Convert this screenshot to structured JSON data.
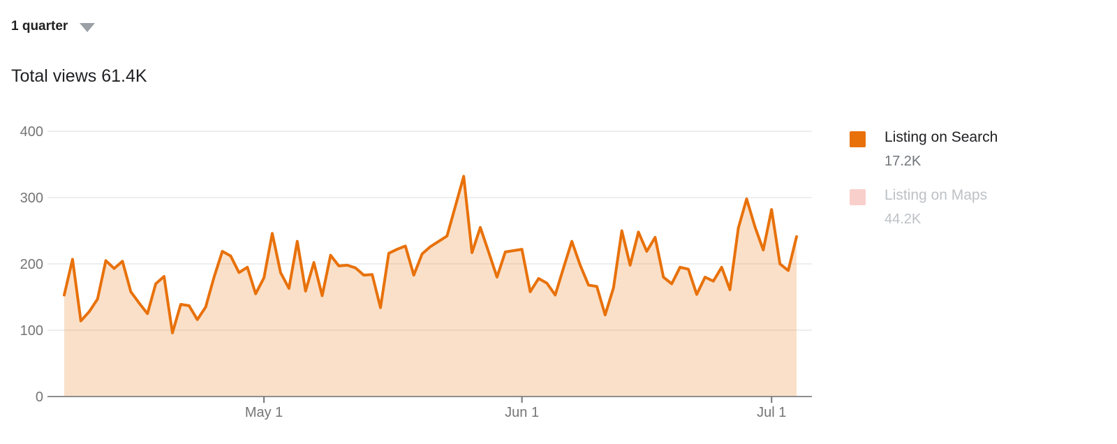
{
  "header": {
    "period_selector": {
      "label": "1 quarter"
    },
    "title": "Total views 61.4K"
  },
  "legend": [
    {
      "label": "Listing on Search",
      "value": "17.2K",
      "swatch": "#E8710A",
      "muted": false
    },
    {
      "label": "Listing on Maps",
      "value": "44.2K",
      "swatch": "#F9CFCB",
      "muted": true
    }
  ],
  "chart_data": {
    "type": "area",
    "title": "Total views 61.4K",
    "xlabel": "",
    "ylabel": "",
    "ylim": [
      0,
      400
    ],
    "y_ticks": [
      0,
      100,
      200,
      300,
      400
    ],
    "grid": "horizontal",
    "legend_position": "right",
    "x_ticks": [
      {
        "index": 24,
        "label": "May 1"
      },
      {
        "index": 55,
        "label": "Jun 1"
      },
      {
        "index": 85,
        "label": "Jul 1"
      }
    ],
    "series": [
      {
        "name": "Listing on Search",
        "total_label": "17.2K",
        "color": "#E8710A",
        "fill": "rgba(232,113,10,0.22)",
        "values": [
          153,
          207,
          114,
          128,
          147,
          205,
          193,
          204,
          158,
          141,
          125,
          170,
          181,
          96,
          139,
          137,
          116,
          135,
          180,
          219,
          212,
          187,
          195,
          155,
          179,
          246,
          187,
          163,
          234,
          159,
          202,
          152,
          213,
          197,
          198,
          194,
          183,
          184,
          134,
          216,
          222,
          227,
          183,
          215,
          226,
          234,
          242,
          287,
          332,
          217,
          255,
          218,
          180,
          218,
          220,
          222,
          158,
          178,
          171,
          153,
          194,
          234,
          198,
          168,
          166,
          123,
          164,
          250,
          198,
          248,
          219,
          240,
          180,
          170,
          195,
          192,
          154,
          180,
          174,
          195,
          161,
          254,
          298,
          256,
          221,
          282,
          200,
          190,
          241
        ]
      },
      {
        "name": "Listing on Maps",
        "total_label": "44.2K",
        "color": "#F9CFCB",
        "hidden": true,
        "values": []
      }
    ],
    "axis_colors": {
      "grid": "#E9E9E9",
      "axis_line": "#8E8E8E",
      "tick_text": "#757575"
    }
  }
}
